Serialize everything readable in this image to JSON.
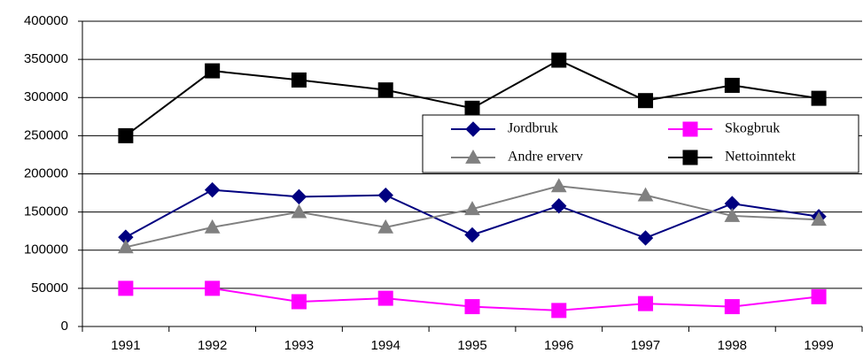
{
  "chart_data": {
    "type": "line",
    "categories": [
      "1991",
      "1992",
      "1993",
      "1994",
      "1995",
      "1996",
      "1997",
      "1998",
      "1999"
    ],
    "series": [
      {
        "name": "Jordbruk",
        "color": "#000080",
        "marker": "diamond",
        "values": [
          117000,
          179000,
          170000,
          172000,
          120000,
          158000,
          116000,
          161000,
          144000
        ]
      },
      {
        "name": "Skogbruk",
        "color": "#ff00ff",
        "marker": "square",
        "values": [
          50000,
          50000,
          32500,
          37000,
          26000,
          21000,
          30000,
          26000,
          39000
        ]
      },
      {
        "name": "Andre erverv",
        "color": "#808080",
        "marker": "triangle",
        "values": [
          104000,
          130000,
          150000,
          130000,
          154000,
          184000,
          172000,
          145000,
          140000
        ]
      },
      {
        "name": "Nettoinntekt",
        "color": "#000000",
        "marker": "square",
        "values": [
          250000,
          335000,
          323000,
          310000,
          286000,
          349000,
          296000,
          316000,
          299000
        ]
      }
    ],
    "ylim": [
      0,
      400000
    ],
    "yticks": [
      0,
      50000,
      100000,
      150000,
      200000,
      250000,
      300000,
      350000,
      400000
    ],
    "grid": true
  }
}
